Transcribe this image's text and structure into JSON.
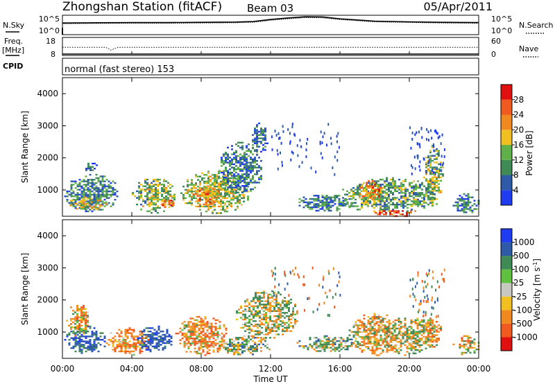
{
  "header": {
    "title": "Zhongshan Station (fitACF)",
    "beam": "Beam 03",
    "date": "05/Apr/2011"
  },
  "top_panel": {
    "left_label": "N.Sky",
    "right_label": "N.Search",
    "left_ticks": [
      "10^5",
      "10^0"
    ],
    "right_ticks": [
      "10^5",
      "10^0"
    ]
  },
  "freq_panel": {
    "left_label_1": "Freq.",
    "left_label_2": "[MHz]",
    "right_label": "Nave",
    "left_ticks": [
      "18",
      "8"
    ],
    "right_ticks": [
      "60",
      "0"
    ]
  },
  "cpid_panel": {
    "label": "CPID",
    "text": "normal (fast stereo) 153"
  },
  "x_axis": {
    "label": "Time UT",
    "ticks": [
      "00:00",
      "04:00",
      "08:00",
      "12:00",
      "16:00",
      "20:00",
      "00:00"
    ]
  },
  "colors": {
    "power": [
      "#1f3cf0",
      "#2f5aa8",
      "#3f8a55",
      "#60b04a",
      "#f0c020",
      "#f08a20",
      "#f05a20",
      "#e01010"
    ],
    "velocity": [
      "#e01010",
      "#f05a20",
      "#f08a20",
      "#f0c020",
      "#c8c8c0",
      "#60c040",
      "#3f8a55",
      "#2f5aa8",
      "#1f3cf0"
    ]
  },
  "chart_data": [
    {
      "type": "line",
      "title": "",
      "xlabel": "",
      "ylabel": "N.Sky",
      "x": [
        0,
        2,
        4,
        6,
        8,
        10,
        11,
        12,
        13,
        14,
        15,
        16,
        17,
        18,
        20,
        22,
        24
      ],
      "series": [
        {
          "name": "N.Sky",
          "values": [
            1000,
            1200,
            1300,
            1300,
            1500,
            1800,
            2500,
            8000,
            20000,
            40000,
            38000,
            12000,
            6000,
            3000,
            2000,
            1500,
            1300
          ]
        },
        {
          "name": "N.Search",
          "values": [
            700,
            800,
            900,
            900,
            1000,
            1200,
            1600,
            5000,
            12000,
            25000,
            22000,
            8000,
            4000,
            2000,
            1400,
            1000,
            900
          ]
        }
      ],
      "ylim": [
        1,
        100000
      ],
      "xlim": [
        0,
        24
      ]
    },
    {
      "type": "line",
      "title": "",
      "xlabel": "",
      "ylabel": "Freq. [MHz]",
      "x": [
        0,
        2.5,
        2.8,
        3.2,
        24
      ],
      "series": [
        {
          "name": "Freq.",
          "values": [
            12.5,
            12.5,
            11,
            12.5,
            12.5
          ]
        },
        {
          "name": "Nave",
          "values": [
            0,
            0,
            0,
            0,
            0
          ]
        }
      ],
      "ylim": [
        8,
        18
      ],
      "xlim": [
        0,
        24
      ]
    },
    {
      "type": "heatmap",
      "title": "",
      "xlabel": "",
      "ylabel": "Slant Range [km]",
      "colorbar_label": "Power [dB]",
      "colorbar_ticks": [
        4,
        8,
        12,
        16,
        20,
        24,
        28
      ],
      "ylim": [
        180,
        4500
      ],
      "yticks": [
        1000,
        2000,
        3000,
        4000
      ],
      "xlim": [
        0,
        24
      ],
      "blobs": [
        {
          "t0": 0.1,
          "t1": 3.2,
          "r0": 350,
          "r1": 1500,
          "mean": 9
        },
        {
          "t0": 0.3,
          "t1": 2.5,
          "r0": 400,
          "r1": 800,
          "mean": 17
        },
        {
          "t0": 1.2,
          "t1": 2.0,
          "r0": 1600,
          "r1": 1900,
          "mean": 6
        },
        {
          "t0": 4.0,
          "t1": 6.5,
          "r0": 300,
          "r1": 1400,
          "mean": 14
        },
        {
          "t0": 5.5,
          "t1": 6.5,
          "r0": 450,
          "r1": 750,
          "mean": 24
        },
        {
          "t0": 6.8,
          "t1": 10.8,
          "r0": 300,
          "r1": 1600,
          "mean": 15
        },
        {
          "t0": 7.5,
          "t1": 9.0,
          "r0": 500,
          "r1": 1200,
          "mean": 22
        },
        {
          "t0": 9.0,
          "t1": 11.5,
          "r0": 900,
          "r1": 2500,
          "mean": 8
        },
        {
          "t0": 10.8,
          "t1": 11.8,
          "r0": 2100,
          "r1": 3100,
          "mean": 6
        },
        {
          "t0": 13.5,
          "t1": 16.8,
          "r0": 350,
          "r1": 900,
          "mean": 8
        },
        {
          "t0": 16.0,
          "t1": 21.5,
          "r0": 300,
          "r1": 1400,
          "mean": 12
        },
        {
          "t0": 18.0,
          "t1": 20.5,
          "r0": 180,
          "r1": 420,
          "mean": 27
        },
        {
          "t0": 17.0,
          "t1": 18.5,
          "r0": 700,
          "r1": 1300,
          "mean": 22
        },
        {
          "t0": 20.8,
          "t1": 21.9,
          "r0": 500,
          "r1": 2400,
          "mean": 14
        },
        {
          "t0": 22.5,
          "t1": 24.0,
          "r0": 300,
          "r1": 900,
          "mean": 7
        }
      ],
      "sparse": [
        {
          "t0": 12.0,
          "t1": 16.0,
          "r0": 1500,
          "r1": 3100
        },
        {
          "t0": 20.0,
          "t1": 22.0,
          "r0": 1500,
          "r1": 3000
        }
      ]
    },
    {
      "type": "heatmap",
      "title": "",
      "xlabel": "Time UT",
      "ylabel": "Slant Range [km]",
      "colorbar_label": "Velocity [m s^-1]",
      "colorbar_ticks": [
        1000,
        500,
        100,
        25,
        -25,
        -100,
        -500,
        -1000
      ],
      "ylim": [
        180,
        4500
      ],
      "yticks": [
        1000,
        2000,
        3000,
        4000
      ],
      "xlim": [
        0,
        24
      ],
      "blobs": [
        {
          "t0": 0.1,
          "t1": 2.5,
          "r0": 350,
          "r1": 1200,
          "mean": 700
        },
        {
          "t0": 0.2,
          "t1": 1.5,
          "r0": 900,
          "r1": 1900,
          "mean": -200
        },
        {
          "t0": 2.5,
          "t1": 5.0,
          "r0": 300,
          "r1": 1200,
          "mean": -400
        },
        {
          "t0": 4.3,
          "t1": 6.3,
          "r0": 400,
          "r1": 1200,
          "mean": 800
        },
        {
          "t0": 6.5,
          "t1": 9.5,
          "r0": 300,
          "r1": 1500,
          "mean": -300
        },
        {
          "t0": 9.0,
          "t1": 12.0,
          "r0": 300,
          "r1": 900,
          "mean": 150
        },
        {
          "t0": 10.0,
          "t1": 13.5,
          "r0": 800,
          "r1": 2300,
          "mean": 0
        },
        {
          "t0": 13.5,
          "t1": 17.0,
          "r0": 400,
          "r1": 900,
          "mean": 200
        },
        {
          "t0": 16.5,
          "t1": 19.5,
          "r0": 300,
          "r1": 1600,
          "mean": -200
        },
        {
          "t0": 18.5,
          "t1": 21.5,
          "r0": 300,
          "r1": 1500,
          "mean": 0
        },
        {
          "t0": 20.8,
          "t1": 21.8,
          "r0": 500,
          "r1": 1500,
          "mean": -300
        },
        {
          "t0": 22.5,
          "t1": 24.0,
          "r0": 300,
          "r1": 900,
          "mean": -150
        }
      ],
      "sparse": [
        {
          "t0": 12.0,
          "t1": 16.0,
          "r0": 1500,
          "r1": 3100
        },
        {
          "t0": 20.0,
          "t1": 22.0,
          "r0": 1500,
          "r1": 3000
        }
      ]
    }
  ]
}
